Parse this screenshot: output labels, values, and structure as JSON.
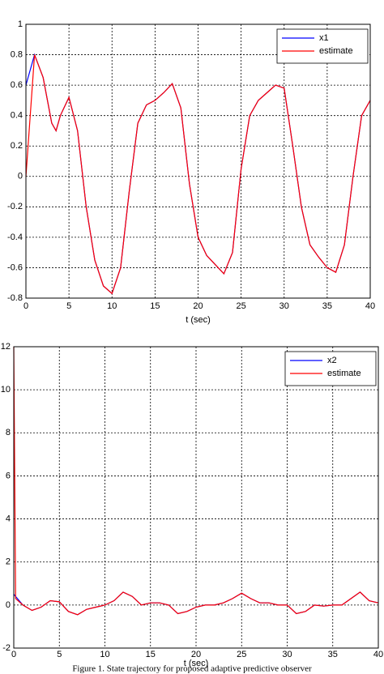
{
  "chart_data": [
    {
      "type": "line",
      "xlabel": "t (sec)",
      "x": [
        0,
        1,
        2,
        3,
        3.5,
        4,
        5,
        6,
        7,
        8,
        9,
        10,
        11,
        12,
        13,
        14,
        15,
        16,
        17,
        18,
        19,
        20,
        21,
        22,
        23,
        24,
        25,
        26,
        27,
        28,
        29,
        30,
        31,
        32,
        33,
        34,
        35,
        36,
        37,
        38,
        39,
        40
      ],
      "series": [
        {
          "name": "x1",
          "color": "#0000ff",
          "values": [
            0.6,
            0.8,
            0.65,
            0.35,
            0.3,
            0.4,
            0.52,
            0.3,
            -0.2,
            -0.55,
            -0.72,
            -0.77,
            -0.6,
            -0.1,
            0.35,
            0.47,
            0.5,
            0.55,
            0.61,
            0.45,
            -0.05,
            -0.4,
            -0.52,
            -0.58,
            -0.64,
            -0.5,
            0.05,
            0.4,
            0.5,
            0.55,
            0.6,
            0.58,
            0.2,
            -0.2,
            -0.45,
            -0.53,
            -0.6,
            -0.63,
            -0.45,
            0,
            0.4,
            0.5
          ]
        },
        {
          "name": "estimate",
          "color": "#ff0000",
          "values": [
            0,
            0.8,
            0.65,
            0.35,
            0.3,
            0.4,
            0.52,
            0.3,
            -0.2,
            -0.55,
            -0.72,
            -0.77,
            -0.6,
            -0.1,
            0.35,
            0.47,
            0.5,
            0.55,
            0.61,
            0.45,
            -0.05,
            -0.4,
            -0.52,
            -0.58,
            -0.64,
            -0.5,
            0.05,
            0.4,
            0.5,
            0.55,
            0.6,
            0.58,
            0.2,
            -0.2,
            -0.45,
            -0.53,
            -0.6,
            -0.63,
            -0.45,
            0,
            0.4,
            0.5
          ]
        }
      ],
      "xlim": [
        0,
        40
      ],
      "xticks": [
        0,
        5,
        10,
        15,
        20,
        25,
        30,
        35,
        40
      ],
      "ylim": [
        -0.8,
        1
      ],
      "yticks": [
        -0.8,
        -0.6,
        -0.4,
        -0.2,
        0,
        0.2,
        0.4,
        0.6,
        0.8,
        1
      ],
      "grid": true,
      "legend": "upper-right"
    },
    {
      "type": "line",
      "xlabel": "t (sec)",
      "x": [
        0,
        0.2,
        1,
        2,
        3,
        4,
        5,
        6,
        7,
        8,
        9,
        10,
        11,
        12,
        13,
        14,
        15,
        16,
        17,
        18,
        19,
        20,
        21,
        22,
        23,
        24,
        25,
        26,
        27,
        28,
        29,
        30,
        31,
        32,
        33,
        34,
        35,
        36,
        37,
        38,
        39,
        40
      ],
      "series": [
        {
          "name": "x2",
          "color": "#0000ff",
          "values": [
            0.5,
            0.4,
            0,
            -0.25,
            -0.1,
            0.2,
            0.15,
            -0.3,
            -0.45,
            -0.2,
            -0.1,
            0,
            0.2,
            0.6,
            0.4,
            0,
            0.1,
            0.1,
            0,
            -0.4,
            -0.3,
            -0.1,
            0,
            0,
            0.1,
            0.3,
            0.55,
            0.3,
            0.1,
            0.1,
            0,
            0,
            -0.4,
            -0.3,
            0,
            -0.05,
            0,
            0,
            0.3,
            0.6,
            0.2,
            0.1
          ]
        },
        {
          "name": "estimate",
          "color": "#ff0000",
          "values": [
            12,
            0.3,
            0,
            -0.25,
            -0.1,
            0.2,
            0.15,
            -0.3,
            -0.45,
            -0.2,
            -0.1,
            0,
            0.2,
            0.6,
            0.4,
            0,
            0.1,
            0.1,
            0,
            -0.4,
            -0.3,
            -0.1,
            0,
            0,
            0.1,
            0.3,
            0.55,
            0.3,
            0.1,
            0.1,
            0,
            0,
            -0.4,
            -0.3,
            0,
            -0.05,
            0,
            0,
            0.3,
            0.6,
            0.2,
            0.1
          ]
        }
      ],
      "xlim": [
        0,
        40
      ],
      "xticks": [
        0,
        5,
        10,
        15,
        20,
        25,
        30,
        35,
        40
      ],
      "ylim": [
        -2,
        12
      ],
      "yticks": [
        -2,
        0,
        2,
        4,
        6,
        8,
        10,
        12
      ],
      "grid": true,
      "legend": "upper-right"
    }
  ],
  "caption": "Figure 1.   State trajectory for proposed adaptive predictive observer"
}
